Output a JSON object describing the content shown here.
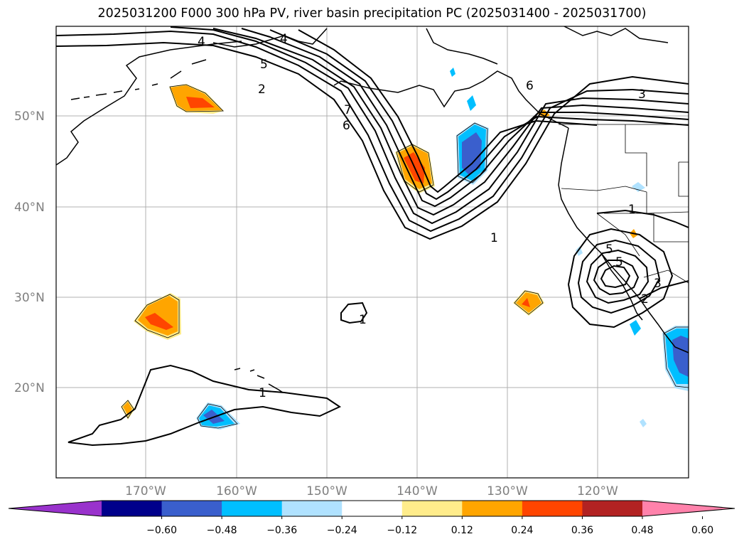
{
  "title": "2025031200 F000 300 hPa PV, river basin precipitation PC (2025031400 - 2025031700)",
  "map": {
    "lat_labels": [
      "50°N",
      "40°N",
      "30°N",
      "20°N"
    ],
    "lon_labels": [
      "170°W",
      "160°W",
      "150°W",
      "140°W",
      "130°W",
      "120°W"
    ],
    "pv_contour_labels": [
      "1",
      "2",
      "3",
      "4",
      "5",
      "6",
      "7",
      "1",
      "1",
      "1",
      "3",
      "4",
      "5",
      "6",
      "5",
      "2"
    ]
  },
  "colorbar": {
    "ticks": [
      "−0.60",
      "−0.48",
      "−0.36",
      "−0.24",
      "−0.12",
      "0.12",
      "0.24",
      "0.36",
      "0.48",
      "0.60"
    ],
    "colors": [
      "#9932cc",
      "#00008b",
      "#3a5fcd",
      "#00bfff",
      "#b0e2ff",
      "#ffffff",
      "#ffec8b",
      "#ffa500",
      "#ff4500",
      "#b22222",
      "#ff82ab"
    ]
  }
}
